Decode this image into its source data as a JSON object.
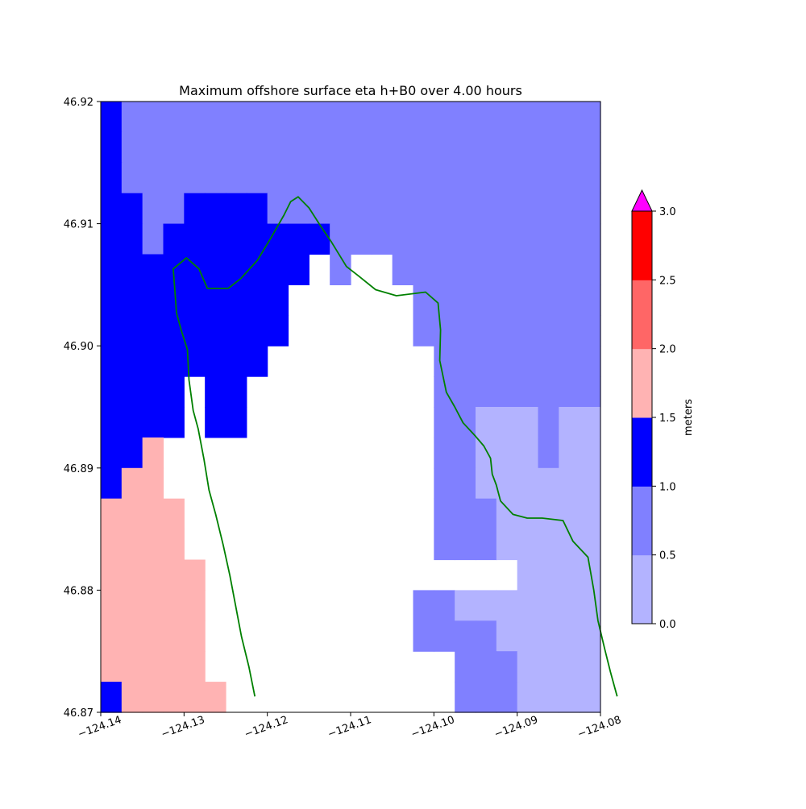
{
  "chart_data": {
    "type": "heatmap",
    "title": "Maximum offshore surface eta h+B0 over 4.00 hours",
    "xlim": [
      -124.14,
      -124.08
    ],
    "ylim": [
      46.87,
      46.92
    ],
    "x_ticks": [
      -124.14,
      -124.13,
      -124.12,
      -124.11,
      -124.1,
      -124.09,
      -124.08
    ],
    "x_tick_labels": [
      "−124.14",
      "−124.13",
      "−124.12",
      "−124.11",
      "−124.10",
      "−124.09",
      "−124.08"
    ],
    "y_ticks": [
      46.87,
      46.88,
      46.89,
      46.9,
      46.91,
      46.92
    ],
    "y_tick_labels": [
      "46.87",
      "46.88",
      "46.89",
      "46.90",
      "46.91",
      "46.92"
    ],
    "grid": false,
    "colorbar": {
      "label": "meters",
      "levels": [
        0.0,
        0.5,
        1.0,
        1.5,
        2.0,
        2.5,
        3.0
      ],
      "level_labels": [
        "0.0",
        "0.5",
        "1.0",
        "1.5",
        "2.0",
        "2.5",
        "3.0"
      ],
      "colors": [
        "#b3b3ff",
        "#8080ff",
        "#0000ff",
        "#ffb3b3",
        "#ff6666",
        "#ff0000"
      ],
      "over_color": "#ff00ff",
      "extend": "max"
    },
    "grid_cells": {
      "lon0": -124.14,
      "lat_top": 46.92,
      "dlon": 0.0025,
      "dlat": 0.0025,
      "legend": {
        ".": "none",
        "a": "0.0-0.5",
        "b": "0.5-1.0",
        "c": "1.0-1.5",
        "d": "1.5-2.0"
      },
      "rows": [
        "cbbbbbbbbbbbbbbbbbbbbbbb",
        "cbbbbbbbbbbbbbbbbbbbbbbb",
        "cbbbbbbbbbbbbbbbbbbbbbbb",
        "ccbbccccbbbbbbbbbbbbbbbb",
        "ccbccccccccbbbbbbbbbbbbb",
        "cccccccccc.b..bbbbbbbbbb",
        "ccccccccc......bbbbbbbbb",
        "ccccccccc......bbbbbbbbb",
        "cccccccc........bbbbbbbb",
        "cccc.cc.........bbbbbbbb",
        "cccc.cc.........bbaaabaa",
        "ccd.............bbaaabaa",
        "cdd.............bbaaaaaa",
        "dddd............bbbaaaaa",
        "dddd............bbbaaaaa",
        "ddddd...............aaaa",
        "ddddd..........bbaaaaaaa",
        "ddddd..........bbbbaaaaa",
        "ddddd............bbbaaaa",
        "cddddd...........bbbaaaa",
        "cddddd...........bbbaaaa",
        "cdddddd.........bbbaaaaa",
        "cdddddd.........bbbaaaaa",
        "cdddddd.........aaaaaaaa",
        "cdddddd........aaaaaaaaa",
        "cddddddd........aaaaaaaa",
        "cddddddd........aaaaaaaa",
        "cddddddd........aaaaaaaa",
        "cddddddd........aaaaaaaa",
        "cddddddd........aaaaaaaa",
        "cddddddd........bbaaaaaa",
        "cddddddd........aaaaaaaa"
      ]
    },
    "shoreline": {
      "color": "#008000",
      "west": [
        [
          -124.1215,
          46.8713
        ],
        [
          -124.122,
          46.8737
        ],
        [
          -124.1225,
          46.8762
        ],
        [
          -124.1234,
          46.8787
        ],
        [
          -124.124,
          46.8812
        ],
        [
          -124.125,
          46.8837
        ],
        [
          -124.126,
          46.8862
        ],
        [
          -124.1265,
          46.8882
        ],
        [
          -124.1272,
          46.8907
        ],
        [
          -124.1282,
          46.8932
        ],
        [
          -124.1288,
          46.8947
        ],
        [
          -124.1297,
          46.8972
        ],
        [
          -124.13,
          46.8997
        ],
        [
          -124.1307,
          46.9012
        ],
        [
          -124.131,
          46.9027
        ],
        [
          -124.1312,
          46.9045
        ],
        [
          -124.1315,
          46.9063
        ],
        [
          -124.1297,
          46.9072
        ],
        [
          -124.128,
          46.9063
        ],
        [
          -124.1265,
          46.9047
        ],
        [
          -124.1235,
          46.9047
        ],
        [
          -124.122,
          46.9057
        ],
        [
          -124.1205,
          46.907
        ],
        [
          -124.119,
          46.9088
        ],
        [
          -124.118,
          46.9107
        ],
        [
          -124.117,
          46.9118
        ],
        [
          -124.115,
          46.9127
        ],
        [
          -124.1135,
          46.9121
        ],
        [
          -124.112,
          46.9106
        ],
        [
          -124.1105,
          46.9083
        ],
        [
          -124.109,
          46.9063
        ],
        [
          -124.107,
          46.9048
        ],
        [
          -124.1045,
          46.9035
        ],
        [
          -124.101,
          46.903
        ],
        [
          -124.099,
          46.9036
        ],
        [
          -124.0975,
          46.9015
        ],
        [
          -124.097,
          46.8993
        ],
        [
          -124.096,
          46.898
        ],
        [
          -124.0955,
          46.8959
        ],
        [
          -124.0938,
          46.8936
        ],
        [
          -124.0927,
          46.8923
        ],
        [
          -124.0914,
          46.8913
        ],
        [
          -124.091,
          46.8908
        ],
        [
          -124.0907,
          46.8895
        ],
        [
          -124.0898,
          46.8888
        ],
        [
          -124.089,
          46.888
        ],
        [
          -124.087,
          46.8867
        ],
        [
          -124.086,
          46.8857
        ],
        [
          -124.0835,
          46.886
        ],
        [
          -124.081,
          46.8871
        ],
        [
          -124.0795,
          46.8878
        ],
        [
          -124.0775,
          46.8897
        ],
        [
          -124.0755,
          46.892
        ],
        [
          -124.0735,
          46.8943
        ],
        [
          -124.072,
          46.896
        ],
        [
          -124.0715,
          46.8975
        ],
        [
          -124.072,
          46.8992
        ],
        [
          -124.073,
          46.9008
        ],
        [
          -124.073,
          46.904
        ]
      ],
      "west_segment": [
        [
          -124.1215,
          46.8713
        ],
        [
          -124.1222,
          46.8737
        ],
        [
          -124.1231,
          46.8762
        ],
        [
          -124.1238,
          46.8787
        ],
        [
          -124.1245,
          46.8812
        ],
        [
          -124.1253,
          46.8837
        ],
        [
          -124.1262,
          46.8862
        ],
        [
          -124.127,
          46.8882
        ],
        [
          -124.1276,
          46.8907
        ],
        [
          -124.1283,
          46.8932
        ],
        [
          -124.1289,
          46.8947
        ],
        [
          -124.1294,
          46.8972
        ],
        [
          -124.1296,
          46.8997
        ],
        [
          -124.1303,
          46.9012
        ],
        [
          -124.1309,
          46.9027
        ],
        [
          -124.1311,
          46.9045
        ],
        [
          -124.1313,
          46.9063
        ],
        [
          -124.1297,
          46.9072
        ],
        [
          -124.1282,
          46.9063
        ],
        [
          -124.1272,
          46.9047
        ],
        [
          -124.1247,
          46.9047
        ],
        [
          -124.1232,
          46.9055
        ],
        [
          -124.1212,
          46.907
        ],
        [
          -124.1196,
          46.9088
        ],
        [
          -124.118,
          46.9107
        ],
        [
          -124.1172,
          46.9118
        ],
        [
          -124.1163,
          46.9122
        ],
        [
          -124.115,
          46.9113
        ],
        [
          -124.1135,
          46.9097
        ],
        [
          -124.1123,
          46.9085
        ]
      ],
      "east_segment": [
        [
          -124.1123,
          46.9085
        ],
        [
          -124.1105,
          46.9065
        ],
        [
          -124.109,
          46.9057
        ],
        [
          -124.107,
          46.9046
        ],
        [
          -124.1045,
          46.9041
        ],
        [
          -124.101,
          46.9044
        ],
        [
          -124.0995,
          46.9035
        ],
        [
          -124.0992,
          46.9013
        ],
        [
          -124.0993,
          46.8988
        ],
        [
          -124.0985,
          46.8962
        ],
        [
          -124.0975,
          46.895
        ],
        [
          -124.0965,
          46.8937
        ],
        [
          -124.095,
          46.8926
        ],
        [
          -124.094,
          46.8918
        ],
        [
          -124.0932,
          46.8908
        ],
        [
          -124.093,
          46.8895
        ],
        [
          -124.0925,
          46.8886
        ],
        [
          -124.092,
          46.8873
        ],
        [
          -124.0905,
          46.8862
        ],
        [
          -124.0888,
          46.8859
        ],
        [
          -124.087,
          46.8859
        ],
        [
          -124.0845,
          46.8857
        ],
        [
          -124.0833,
          46.884
        ],
        [
          -124.0815,
          46.8827
        ],
        [
          -124.0808,
          46.88
        ],
        [
          -124.0803,
          46.8775
        ],
        [
          -124.0795,
          46.8752
        ],
        [
          -124.0788,
          46.8733
        ],
        [
          -124.078,
          46.8713
        ]
      ]
    }
  }
}
